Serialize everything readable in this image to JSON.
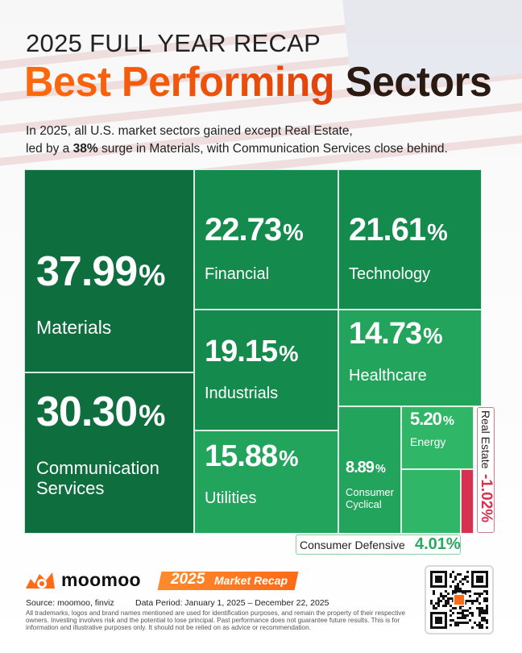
{
  "header": {
    "title_top": "2025 FULL YEAR RECAP",
    "title_highlight": "Best Performing",
    "title_rest": "Sectors",
    "subtitle_line1": "In 2025, all U.S. market sectors gained except Real Estate,",
    "subtitle_line2_pre": "led by a ",
    "subtitle_line2_bold": "38%",
    "subtitle_line2_post": " surge in Materials, with Communication Services close behind."
  },
  "chart_data": {
    "type": "treemap",
    "title": "Best Performing Sectors",
    "unit": "%",
    "sectors": [
      {
        "name": "Materials",
        "value": 37.99
      },
      {
        "name": "Communication Services",
        "value": 30.3
      },
      {
        "name": "Financial",
        "value": 22.73
      },
      {
        "name": "Technology",
        "value": 21.61
      },
      {
        "name": "Industrials",
        "value": 19.15
      },
      {
        "name": "Utilities",
        "value": 15.88
      },
      {
        "name": "Healthcare",
        "value": 14.73
      },
      {
        "name": "Consumer Cyclical",
        "value": 8.89
      },
      {
        "name": "Energy",
        "value": 5.2
      },
      {
        "name": "Consumer Defensive",
        "value": 4.01
      },
      {
        "name": "Real Estate",
        "value": -1.02
      }
    ],
    "colors": {
      "strong_gain": "#0f6e3e",
      "gain": "#158a4d",
      "moderate_gain": "#23a45c",
      "light_gain": "#2fb767",
      "loss": "#d8304f"
    }
  },
  "footer": {
    "brand": "moomoo",
    "recap_year": "2025",
    "recap_label": "Market Recap",
    "source": "Source: moomoo, finviz",
    "period": "Data Period: January 1, 2025 – December 22, 2025",
    "disclaimer": "All trademarks, logos and brand names mentioned are used for identification purposes, and remain the property of their respective owners. Investing involves risk and the potential to lose principal. Past performance does not guarantee future results. This is for information and illustrative purposes only. It should not be relied on as advice or recommendation."
  }
}
